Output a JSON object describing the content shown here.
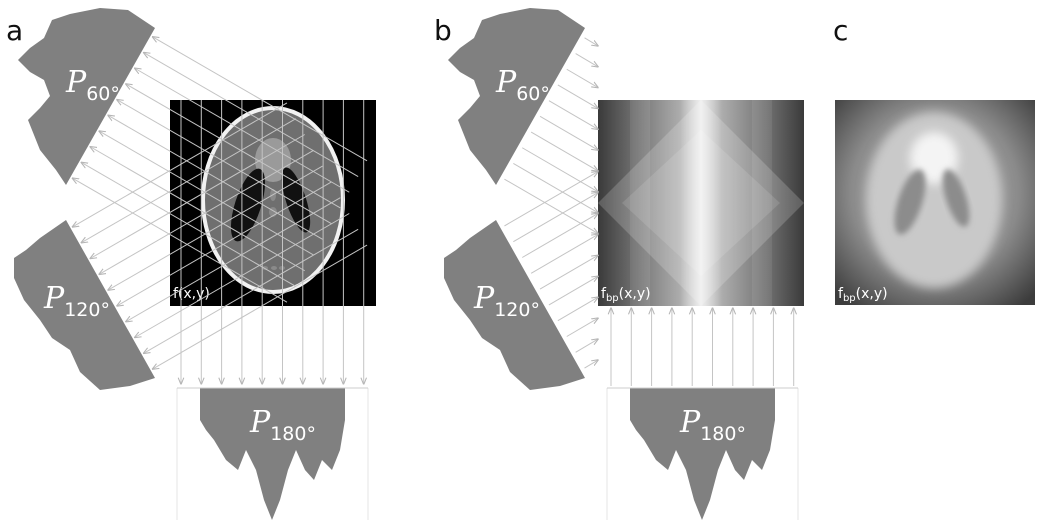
{
  "panels": [
    {
      "label": "a",
      "image_label": {
        "text": "f(x,y)"
      },
      "projections": [
        {
          "symbol": "P",
          "angle": "60°"
        },
        {
          "symbol": "P",
          "angle": "120°"
        },
        {
          "symbol": "P",
          "angle": "180°"
        }
      ]
    },
    {
      "label": "b",
      "image_label": {
        "text": "f",
        "subscript": "bp",
        "suffix": "(x,y)"
      },
      "projections": [
        {
          "symbol": "P",
          "angle": "60°"
        },
        {
          "symbol": "P",
          "angle": "120°"
        },
        {
          "symbol": "P",
          "angle": "180°"
        }
      ]
    },
    {
      "label": "c",
      "image_label": {
        "text": "f",
        "subscript": "bp",
        "suffix": "(x,y)"
      }
    }
  ]
}
